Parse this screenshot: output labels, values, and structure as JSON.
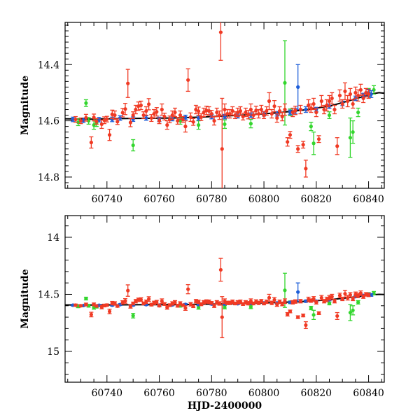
{
  "chart_data": [
    {
      "type": "scatter",
      "title": "",
      "xlabel": "",
      "ylabel": "Magnitude",
      "xlim": [
        60724,
        60846
      ],
      "ylim": [
        14.84,
        14.25
      ],
      "y_inverted": true,
      "x_ticks": [
        "60740",
        "60760",
        "60780",
        "60800",
        "60820",
        "60840"
      ],
      "y_ticks": [
        "14.4",
        "14.6",
        "14.8"
      ],
      "grid": false,
      "colors": {
        "red": "#f03a24",
        "blue": "#1d5ed8",
        "green": "#33d62e",
        "model": "#000000"
      },
      "model_curve": [
        [
          60724,
          14.593
        ],
        [
          60735,
          14.594
        ],
        [
          60745,
          14.592
        ],
        [
          60755,
          14.591
        ],
        [
          60765,
          14.59
        ],
        [
          60775,
          14.587
        ],
        [
          60785,
          14.583
        ],
        [
          60795,
          14.578
        ],
        [
          60805,
          14.572
        ],
        [
          60815,
          14.562
        ],
        [
          60825,
          14.548
        ],
        [
          60832,
          14.53
        ],
        [
          60837,
          14.516
        ],
        [
          60841,
          14.505
        ],
        [
          60844,
          14.5
        ],
        [
          60846,
          14.502
        ]
      ],
      "series": [
        {
          "color": "red",
          "points": [
            [
              60728,
              14.595,
              0.01
            ],
            [
              60730,
              14.6,
              0.01
            ],
            [
              60732,
              14.589,
              0.012
            ],
            [
              60734,
              14.677,
              0.02
            ],
            [
              60735,
              14.588,
              0.012
            ],
            [
              60736,
              14.602,
              0.01
            ],
            [
              60738,
              14.612,
              0.015
            ],
            [
              60739,
              14.598,
              0.012
            ],
            [
              60740,
              14.594,
              0.01
            ],
            [
              60741,
              14.65,
              0.02
            ],
            [
              60742,
              14.577,
              0.015
            ],
            [
              60743,
              14.58,
              0.015
            ],
            [
              60744,
              14.603,
              0.01
            ],
            [
              60746,
              14.571,
              0.015
            ],
            [
              60747,
              14.558,
              0.02
            ],
            [
              60748,
              14.467,
              0.05
            ],
            [
              60749,
              14.606,
              0.015
            ],
            [
              60750,
              14.58,
              0.012
            ],
            [
              60751,
              14.56,
              0.015
            ],
            [
              60752,
              14.548,
              0.015
            ],
            [
              60753,
              14.545,
              0.015
            ],
            [
              60754,
              14.58,
              0.012
            ],
            [
              60755,
              14.565,
              0.015
            ],
            [
              60756,
              14.541,
              0.02
            ],
            [
              60757,
              14.59,
              0.012
            ],
            [
              60758,
              14.575,
              0.015
            ],
            [
              60759,
              14.568,
              0.015
            ],
            [
              60760,
              14.6,
              0.01
            ],
            [
              60761,
              14.56,
              0.02
            ],
            [
              60762,
              14.585,
              0.012
            ],
            [
              60763,
              14.615,
              0.015
            ],
            [
              60764,
              14.595,
              0.012
            ],
            [
              60765,
              14.58,
              0.015
            ],
            [
              60766,
              14.57,
              0.015
            ],
            [
              60767,
              14.6,
              0.012
            ],
            [
              60768,
              14.58,
              0.015
            ],
            [
              60769,
              14.595,
              0.01
            ],
            [
              60770,
              14.62,
              0.02
            ],
            [
              60771,
              14.455,
              0.04
            ],
            [
              60772,
              14.587,
              0.015
            ],
            [
              60773,
              14.604,
              0.012
            ],
            [
              60774,
              14.56,
              0.015
            ],
            [
              60775,
              14.566,
              0.015
            ],
            [
              60776,
              14.587,
              0.012
            ],
            [
              60777,
              14.57,
              0.015
            ],
            [
              60778,
              14.563,
              0.015
            ],
            [
              60779,
              14.565,
              0.015
            ],
            [
              60780,
              14.575,
              0.012
            ],
            [
              60781,
              14.6,
              0.015
            ],
            [
              60782,
              14.57,
              0.015
            ],
            [
              60783,
              14.58,
              0.015
            ],
            [
              60783.5,
              14.285,
              0.1
            ],
            [
              60784,
              14.7,
              0.18
            ],
            [
              60785,
              14.56,
              0.02
            ],
            [
              60786,
              14.575,
              0.015
            ],
            [
              60787,
              14.575,
              0.015
            ],
            [
              60788,
              14.565,
              0.015
            ],
            [
              60789,
              14.58,
              0.012
            ],
            [
              60790,
              14.57,
              0.015
            ],
            [
              60791,
              14.565,
              0.015
            ],
            [
              60792,
              14.585,
              0.012
            ],
            [
              60793,
              14.57,
              0.015
            ],
            [
              60794,
              14.578,
              0.015
            ],
            [
              60795,
              14.56,
              0.02
            ],
            [
              60796,
              14.58,
              0.012
            ],
            [
              60797,
              14.563,
              0.015
            ],
            [
              60798,
              14.575,
              0.015
            ],
            [
              60799,
              14.56,
              0.015
            ],
            [
              60800,
              14.58,
              0.012
            ],
            [
              60801,
              14.565,
              0.015
            ],
            [
              60802,
              14.53,
              0.03
            ],
            [
              60803,
              14.575,
              0.015
            ],
            [
              60804,
              14.548,
              0.02
            ],
            [
              60805,
              14.59,
              0.015
            ],
            [
              60806,
              14.565,
              0.015
            ],
            [
              60807,
              14.585,
              0.015
            ],
            [
              60808,
              14.56,
              0.02
            ],
            [
              60809,
              14.675,
              0.015
            ],
            [
              60810,
              14.65,
              0.012
            ],
            [
              60811,
              14.57,
              0.015
            ],
            [
              60812,
              14.563,
              0.015
            ],
            [
              60813,
              14.7,
              0.012
            ],
            [
              60814,
              14.56,
              0.015
            ],
            [
              60815,
              14.685,
              0.012
            ],
            [
              60816,
              14.77,
              0.03
            ],
            [
              60817,
              14.545,
              0.02
            ],
            [
              60818,
              14.555,
              0.015
            ],
            [
              60819,
              14.54,
              0.02
            ],
            [
              60820,
              14.57,
              0.015
            ],
            [
              60821,
              14.665,
              0.012
            ],
            [
              60822,
              14.53,
              0.02
            ],
            [
              60823,
              14.56,
              0.015
            ],
            [
              60824,
              14.545,
              0.02
            ],
            [
              60825,
              14.53,
              0.02
            ],
            [
              60826,
              14.52,
              0.02
            ],
            [
              60827,
              14.56,
              0.015
            ],
            [
              60828,
              14.69,
              0.03
            ],
            [
              60829,
              14.51,
              0.02
            ],
            [
              60830,
              14.54,
              0.015
            ],
            [
              60831,
              14.495,
              0.03
            ],
            [
              60832,
              14.53,
              0.02
            ],
            [
              60833,
              14.505,
              0.02
            ],
            [
              60834,
              14.54,
              0.015
            ],
            [
              60835,
              14.5,
              0.02
            ],
            [
              60836,
              14.51,
              0.02
            ],
            [
              60837,
              14.49,
              0.02
            ],
            [
              60838,
              14.52,
              0.015
            ],
            [
              60839,
              14.5,
              0.015
            ],
            [
              60840,
              14.505,
              0.015
            ]
          ]
        },
        {
          "color": "blue",
          "points": [
            [
              60727,
              14.595,
              0.008
            ],
            [
              60731,
              14.598,
              0.008
            ],
            [
              60737,
              14.596,
              0.008
            ],
            [
              60742,
              14.595,
              0.008
            ],
            [
              60745,
              14.59,
              0.008
            ],
            [
              60750,
              14.594,
              0.008
            ],
            [
              60755,
              14.59,
              0.008
            ],
            [
              60760,
              14.595,
              0.008
            ],
            [
              60765,
              14.592,
              0.008
            ],
            [
              60770,
              14.588,
              0.008
            ],
            [
              60775,
              14.59,
              0.008
            ],
            [
              60780,
              14.585,
              0.008
            ],
            [
              60785,
              14.585,
              0.008
            ],
            [
              60790,
              14.582,
              0.008
            ],
            [
              60795,
              14.58,
              0.008
            ],
            [
              60800,
              14.575,
              0.008
            ],
            [
              60805,
              14.575,
              0.008
            ],
            [
              60810,
              14.57,
              0.008
            ],
            [
              60812,
              14.565,
              0.01
            ],
            [
              60813,
              14.48,
              0.08
            ],
            [
              60816,
              14.56,
              0.01
            ],
            [
              60820,
              14.56,
              0.008
            ],
            [
              60825,
              14.548,
              0.008
            ],
            [
              60830,
              14.538,
              0.008
            ],
            [
              60835,
              14.52,
              0.008
            ],
            [
              60838,
              14.51,
              0.008
            ],
            [
              60840,
              14.5,
              0.012
            ],
            [
              60841,
              14.505,
              0.012
            ]
          ]
        },
        {
          "color": "green",
          "points": [
            [
              60729,
              14.605,
              0.012
            ],
            [
              60732,
              14.537,
              0.012
            ],
            [
              60733,
              14.6,
              0.012
            ],
            [
              60735,
              14.615,
              0.015
            ],
            [
              60736,
              14.608,
              0.012
            ],
            [
              60750,
              14.687,
              0.02
            ],
            [
              60768,
              14.6,
              0.012
            ],
            [
              60775,
              14.615,
              0.015
            ],
            [
              60785,
              14.612,
              0.015
            ],
            [
              60795,
              14.61,
              0.015
            ],
            [
              60808,
              14.465,
              0.15
            ],
            [
              60810,
              14.57,
              0.012
            ],
            [
              60818,
              14.62,
              0.015
            ],
            [
              60819,
              14.68,
              0.04
            ],
            [
              60825,
              14.58,
              0.012
            ],
            [
              60833,
              14.66,
              0.07
            ],
            [
              60834,
              14.64,
              0.04
            ],
            [
              60836,
              14.57,
              0.015
            ],
            [
              60840,
              14.5,
              0.015
            ],
            [
              60842,
              14.49,
              0.015
            ]
          ]
        }
      ]
    },
    {
      "type": "scatter",
      "title": "",
      "xlabel": "HJD-2400000",
      "ylabel": "Magnitude",
      "xlim": [
        60724,
        60846
      ],
      "ylim": [
        15.27,
        13.81
      ],
      "y_inverted": true,
      "x_ticks": [
        "60740",
        "60760",
        "60780",
        "60800",
        "60820",
        "60840"
      ],
      "y_ticks": [
        "14",
        "14.5",
        "15"
      ],
      "grid": false,
      "colors": {
        "red": "#f03a24",
        "blue": "#1d5ed8",
        "green": "#33d62e",
        "model": "#000000"
      },
      "model_curve": [
        [
          60724,
          14.593
        ],
        [
          60735,
          14.594
        ],
        [
          60745,
          14.592
        ],
        [
          60755,
          14.591
        ],
        [
          60765,
          14.59
        ],
        [
          60775,
          14.587
        ],
        [
          60785,
          14.583
        ],
        [
          60795,
          14.578
        ],
        [
          60805,
          14.572
        ],
        [
          60815,
          14.562
        ],
        [
          60825,
          14.548
        ],
        [
          60832,
          14.53
        ],
        [
          60837,
          14.516
        ],
        [
          60841,
          14.505
        ],
        [
          60844,
          14.5
        ],
        [
          60846,
          14.502
        ]
      ],
      "series_ref": "same data as upper panel"
    }
  ]
}
